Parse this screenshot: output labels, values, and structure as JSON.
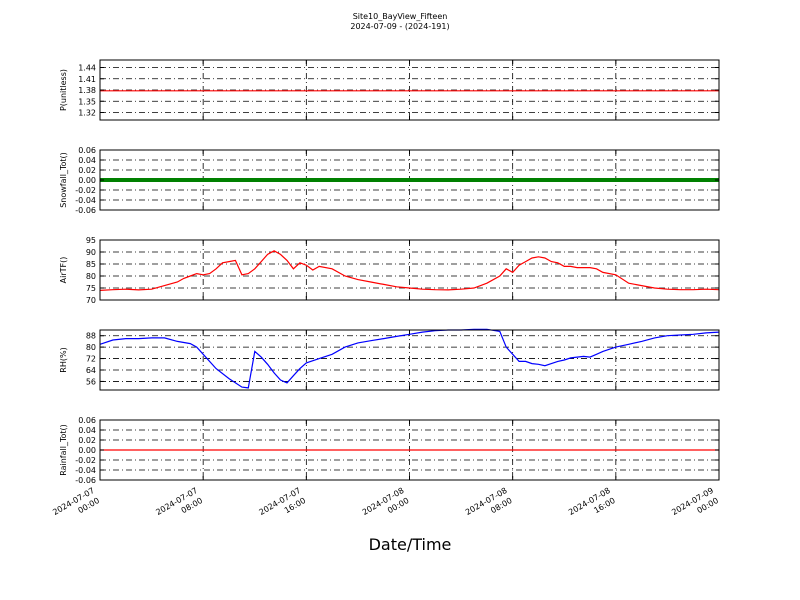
{
  "title_line1": "Site10_BayView_Fifteen",
  "title_line2": "2024-07-09 - (2024-191)",
  "xlabel": "Date/Time",
  "x_ticks": [
    {
      "line1": "2024-07-07",
      "line2": "00:00"
    },
    {
      "line1": "2024-07-07",
      "line2": "08:00"
    },
    {
      "line1": "2024-07-07",
      "line2": "16:00"
    },
    {
      "line1": "2024-07-08",
      "line2": "00:00"
    },
    {
      "line1": "2024-07-08",
      "line2": "08:00"
    },
    {
      "line1": "2024-07-08",
      "line2": "16:00"
    },
    {
      "line1": "2024-07-09",
      "line2": "00:00"
    }
  ],
  "chart_data": [
    {
      "type": "line",
      "ylabel": "P(unitless)",
      "ylim": [
        1.3,
        1.46
      ],
      "yticks": [
        "1.44",
        "1.41",
        "1.38",
        "1.35",
        "1.32"
      ],
      "ytick_values": [
        1.44,
        1.41,
        1.38,
        1.35,
        1.32
      ],
      "color": "#ff0000",
      "grid": true,
      "x_hours": [
        0,
        48
      ],
      "y": [
        1.378,
        1.378
      ]
    },
    {
      "type": "line",
      "ylabel": "Snowfall_Tot()",
      "ylim": [
        -0.06,
        0.06
      ],
      "yticks": [
        "0.06",
        "0.04",
        "0.02",
        "0.00",
        "-0.02",
        "-0.04",
        "-0.06"
      ],
      "ytick_values": [
        0.06,
        0.04,
        0.02,
        0.0,
        -0.02,
        -0.04,
        -0.06
      ],
      "color": "#008000",
      "grid": true,
      "x_hours": [
        0,
        48
      ],
      "y": [
        0.0,
        0.0
      ]
    },
    {
      "type": "line",
      "ylabel": "AirTF()",
      "ylim": [
        70,
        95
      ],
      "yticks": [
        "95",
        "90",
        "85",
        "80",
        "75",
        "70"
      ],
      "ytick_values": [
        95,
        90,
        85,
        80,
        75,
        70
      ],
      "color": "#ff0000",
      "grid": true,
      "x_hours": [
        0,
        1,
        2,
        3,
        4,
        5,
        6,
        6.5,
        7,
        7.5,
        8,
        8.5,
        9,
        9.5,
        10,
        10.5,
        11,
        11.5,
        12,
        12.5,
        13,
        13.5,
        14,
        14.5,
        15,
        15.5,
        16,
        16.5,
        17,
        18,
        19,
        20,
        21,
        22,
        23,
        24,
        25,
        26,
        27,
        28,
        29,
        30,
        31,
        31.5,
        32,
        32.5,
        33,
        33.5,
        34,
        34.5,
        35,
        35.5,
        36,
        36.5,
        37,
        37.5,
        38,
        38.5,
        39,
        40,
        41,
        42,
        43,
        44,
        45,
        46,
        47,
        48
      ],
      "y": [
        74,
        74.3,
        74.5,
        74.2,
        74.5,
        76,
        77.5,
        79,
        80,
        81,
        80.5,
        81,
        83,
        85.5,
        86,
        86.5,
        80.5,
        81,
        83,
        86,
        89,
        90.5,
        89,
        86.5,
        83,
        85.5,
        84.5,
        82.5,
        84,
        83,
        80,
        78.5,
        77.5,
        76.5,
        75.5,
        75,
        74.5,
        74.3,
        74.2,
        74.5,
        75,
        77,
        80,
        83,
        81.5,
        84.5,
        86,
        87.5,
        88,
        87.5,
        86,
        85.5,
        84,
        84,
        83.5,
        83.5,
        83.5,
        83,
        81.5,
        80.5,
        77,
        76,
        75,
        74.5,
        74.3,
        74.3,
        74.5,
        74.3
      ]
    },
    {
      "type": "line",
      "ylabel": "RH(%)",
      "ylim": [
        50,
        92
      ],
      "yticks": [
        "88",
        "80",
        "72",
        "64",
        "56"
      ],
      "ytick_values": [
        88,
        80,
        72,
        64,
        56
      ],
      "color": "#0000ff",
      "grid": true,
      "x_hours": [
        0,
        1,
        2,
        3,
        4,
        5,
        6,
        7,
        7.5,
        8,
        9,
        10,
        11,
        11.5,
        12,
        12.5,
        13,
        13.5,
        14,
        14.5,
        15,
        15.5,
        16,
        17,
        18,
        19,
        20,
        21,
        22,
        23,
        24,
        25,
        26,
        27,
        28,
        29,
        30,
        31,
        31.5,
        32,
        32.5,
        33,
        33.5,
        34,
        34.5,
        35,
        35.5,
        36,
        36.5,
        37,
        37.5,
        38,
        38.5,
        39,
        40,
        41,
        42,
        43,
        44,
        45,
        46,
        47,
        48
      ],
      "y": [
        82,
        85,
        86,
        86,
        86.5,
        86.5,
        84,
        82.5,
        80,
        75,
        65,
        58,
        52,
        51.5,
        77,
        73,
        68,
        62,
        57,
        55,
        60,
        65,
        69,
        72,
        75,
        80,
        83,
        84.5,
        86,
        87.5,
        89,
        90.5,
        91.5,
        92,
        92,
        92.5,
        92.5,
        91,
        80,
        75,
        70,
        70,
        68.5,
        68,
        67,
        68.5,
        70,
        71,
        72.5,
        73,
        73.5,
        73,
        75,
        77,
        80,
        82,
        84,
        86.5,
        88,
        88.5,
        89,
        90,
        90.5
      ]
    },
    {
      "type": "line",
      "ylabel": "Rainfall_Tot()",
      "ylim": [
        -0.06,
        0.06
      ],
      "yticks": [
        "0.06",
        "0.04",
        "0.02",
        "0.00",
        "-0.02",
        "-0.04",
        "-0.06"
      ],
      "ytick_values": [
        0.06,
        0.04,
        0.02,
        0.0,
        -0.02,
        -0.04,
        -0.06
      ],
      "color": "#ff0000",
      "grid": true,
      "x_hours": [
        0,
        48
      ],
      "y": [
        0.0,
        0.0
      ]
    }
  ]
}
